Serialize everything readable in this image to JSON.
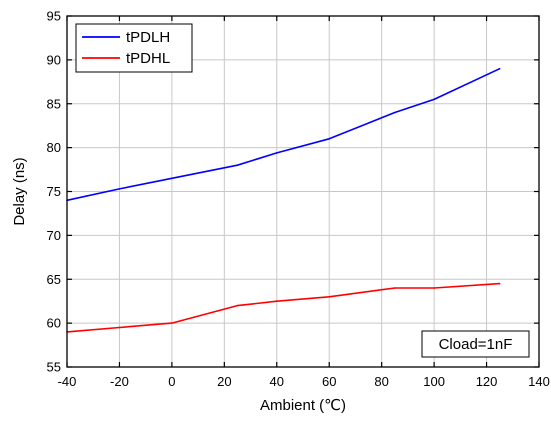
{
  "chart_data": {
    "type": "line",
    "title": "",
    "xlabel": "Ambient (℃)",
    "ylabel": "Delay (ns)",
    "xlim": [
      -40,
      140
    ],
    "ylim": [
      55,
      95
    ],
    "xticks": [
      -40,
      -20,
      0,
      20,
      40,
      60,
      80,
      100,
      120,
      140
    ],
    "yticks": [
      55,
      60,
      65,
      70,
      75,
      80,
      85,
      90,
      95
    ],
    "grid": true,
    "legend_position": "top-left",
    "annotation": "Cload=1nF",
    "annotation_position": "bottom-right",
    "series": [
      {
        "name": "tPDLH",
        "color": "#0000ff",
        "x": [
          -40,
          -20,
          0,
          25,
          40,
          60,
          85,
          100,
          125
        ],
        "y": [
          74.0,
          75.3,
          76.5,
          78.0,
          79.4,
          81.0,
          84.0,
          85.5,
          89.0
        ]
      },
      {
        "name": "tPDHL",
        "color": "#ff0000",
        "x": [
          -40,
          -20,
          0,
          25,
          40,
          60,
          85,
          100,
          125
        ],
        "y": [
          59.0,
          59.5,
          60.0,
          62.0,
          62.5,
          63.0,
          64.0,
          64.0,
          64.5
        ]
      }
    ]
  }
}
